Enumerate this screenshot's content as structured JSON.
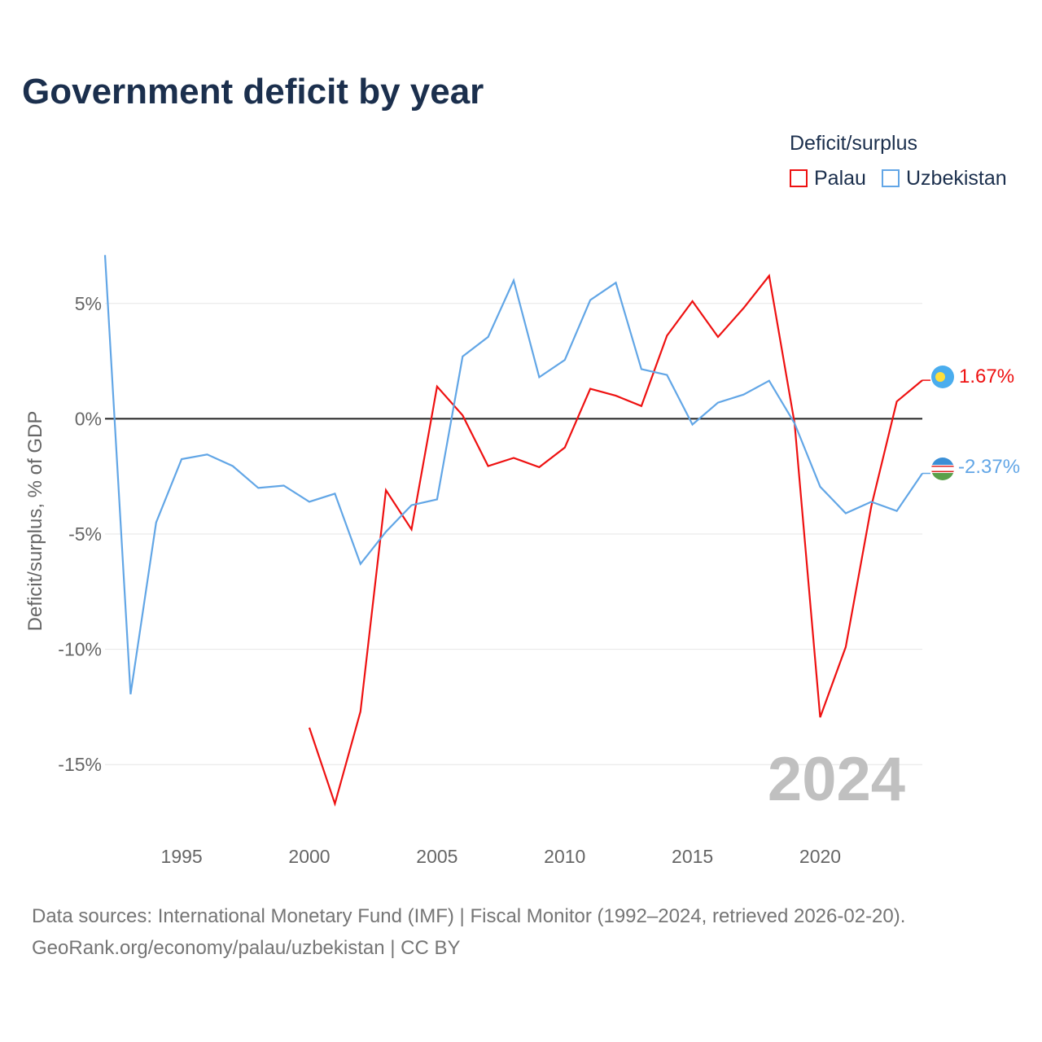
{
  "title": "Government deficit by year",
  "legend": {
    "title": "Deficit/surplus",
    "items": [
      {
        "name": "Palau",
        "color": "#ee1111"
      },
      {
        "name": "Uzbekistan",
        "color": "#62a6e6"
      }
    ]
  },
  "year_watermark": "2024",
  "end_labels": {
    "palau": "1.67%",
    "uzbekistan": "-2.37%"
  },
  "footer": {
    "line1": "Data sources: International Monetary Fund (IMF) | Fiscal Monitor (1992–2024, retrieved 2026-02-20).",
    "line2": "GeoRank.org/economy/palau/uzbekistan | CC BY"
  },
  "chart_data": {
    "type": "line",
    "title": "Government deficit by year",
    "xlabel": "",
    "ylabel": "Deficit/surplus, % of GDP",
    "xlim": [
      1992,
      2024
    ],
    "ylim": [
      -17.5,
      7.5
    ],
    "x_ticks": [
      1995,
      2000,
      2005,
      2010,
      2015,
      2020
    ],
    "y_ticks": [
      5,
      0,
      -5,
      -10,
      -15
    ],
    "y_tick_labels": [
      "5%",
      "0%",
      "-5%",
      "-10%",
      "-15%"
    ],
    "zero_line": 0,
    "grid": "horizontal",
    "legend_position": "top-right",
    "series": [
      {
        "name": "Palau",
        "color": "#ee1111",
        "x": [
          2000,
          2001,
          2002,
          2003,
          2004,
          2005,
          2006,
          2007,
          2008,
          2009,
          2010,
          2011,
          2012,
          2013,
          2014,
          2015,
          2016,
          2017,
          2018,
          2019,
          2020,
          2021,
          2022,
          2023,
          2024
        ],
        "values": [
          -13.4,
          -16.7,
          -12.7,
          -3.1,
          -4.8,
          1.4,
          0.15,
          -2.05,
          -1.7,
          -2.1,
          -1.25,
          1.3,
          1.0,
          0.55,
          3.6,
          5.1,
          3.55,
          4.8,
          6.2,
          -0.2,
          -12.95,
          -9.9,
          -3.8,
          0.75,
          1.67
        ]
      },
      {
        "name": "Uzbekistan",
        "color": "#62a6e6",
        "x": [
          1992,
          1993,
          1994,
          1995,
          1996,
          1997,
          1998,
          1999,
          2000,
          2001,
          2002,
          2003,
          2004,
          2005,
          2006,
          2007,
          2008,
          2009,
          2010,
          2011,
          2012,
          2013,
          2014,
          2015,
          2016,
          2017,
          2018,
          2019,
          2020,
          2021,
          2022,
          2023,
          2024
        ],
        "values": [
          7.1,
          -11.95,
          -4.5,
          -1.75,
          -1.55,
          -2.05,
          -3.0,
          -2.9,
          -3.6,
          -3.25,
          -6.3,
          -4.9,
          -3.75,
          -3.5,
          2.7,
          3.55,
          6.0,
          1.8,
          2.55,
          5.15,
          5.9,
          2.15,
          1.9,
          -0.25,
          0.7,
          1.05,
          1.65,
          -0.2,
          -2.95,
          -4.1,
          -3.6,
          -4.0,
          -2.37
        ]
      }
    ]
  }
}
